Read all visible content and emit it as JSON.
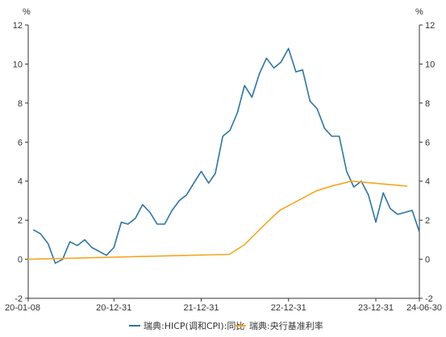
{
  "chart_data": {
    "type": "line",
    "y_unit_left": "%",
    "y_unit_right": "%",
    "ylim": [
      -2,
      12
    ],
    "y_ticks": [
      -2,
      0,
      2,
      4,
      6,
      8,
      10,
      12
    ],
    "x_range": [
      "2020-01-08",
      "2024-06-30"
    ],
    "x_tick_labels": [
      {
        "label": "20-01-08",
        "date": "2020-01-08"
      },
      {
        "label": "20-12-31",
        "date": "2020-12-31"
      },
      {
        "label": "21-12-31",
        "date": "2021-12-31"
      },
      {
        "label": "22-12-31",
        "date": "2022-12-31"
      },
      {
        "label": "23-12-31",
        "date": "2023-12-31"
      },
      {
        "label": "24-06-30",
        "date": "2024-06-30"
      }
    ],
    "grid": false,
    "legend_position": "bottom",
    "series": [
      {
        "name": "瑞典:HICP(调和CPI):同比",
        "color": "#2e75a0",
        "points": [
          [
            "2020-01-31",
            1.5
          ],
          [
            "2020-02-29",
            1.3
          ],
          [
            "2020-03-31",
            0.8
          ],
          [
            "2020-04-30",
            -0.2
          ],
          [
            "2020-05-31",
            0.0
          ],
          [
            "2020-06-30",
            0.9
          ],
          [
            "2020-07-31",
            0.7
          ],
          [
            "2020-08-31",
            1.0
          ],
          [
            "2020-09-30",
            0.6
          ],
          [
            "2020-10-31",
            0.4
          ],
          [
            "2020-11-30",
            0.2
          ],
          [
            "2020-12-31",
            0.6
          ],
          [
            "2021-01-31",
            1.9
          ],
          [
            "2021-02-28",
            1.8
          ],
          [
            "2021-03-31",
            2.1
          ],
          [
            "2021-04-30",
            2.8
          ],
          [
            "2021-05-31",
            2.4
          ],
          [
            "2021-06-30",
            1.8
          ],
          [
            "2021-07-31",
            1.8
          ],
          [
            "2021-08-31",
            2.5
          ],
          [
            "2021-09-30",
            3.0
          ],
          [
            "2021-10-31",
            3.3
          ],
          [
            "2021-11-30",
            3.9
          ],
          [
            "2021-12-31",
            4.5
          ],
          [
            "2022-01-31",
            3.9
          ],
          [
            "2022-02-28",
            4.4
          ],
          [
            "2022-03-31",
            6.3
          ],
          [
            "2022-04-30",
            6.6
          ],
          [
            "2022-05-31",
            7.5
          ],
          [
            "2022-06-30",
            8.9
          ],
          [
            "2022-07-31",
            8.3
          ],
          [
            "2022-08-31",
            9.5
          ],
          [
            "2022-09-30",
            10.3
          ],
          [
            "2022-10-31",
            9.8
          ],
          [
            "2022-11-30",
            10.1
          ],
          [
            "2022-12-31",
            10.8
          ],
          [
            "2023-01-31",
            9.6
          ],
          [
            "2023-02-28",
            9.7
          ],
          [
            "2023-03-31",
            8.1
          ],
          [
            "2023-04-30",
            7.7
          ],
          [
            "2023-05-31",
            6.7
          ],
          [
            "2023-06-30",
            6.3
          ],
          [
            "2023-07-31",
            6.3
          ],
          [
            "2023-08-31",
            4.5
          ],
          [
            "2023-09-30",
            3.7
          ],
          [
            "2023-10-31",
            4.0
          ],
          [
            "2023-11-30",
            3.3
          ],
          [
            "2023-12-31",
            1.9
          ],
          [
            "2024-01-31",
            3.4
          ],
          [
            "2024-02-29",
            2.6
          ],
          [
            "2024-03-31",
            2.3
          ],
          [
            "2024-04-30",
            2.4
          ],
          [
            "2024-05-31",
            2.5
          ],
          [
            "2024-06-30",
            1.4
          ]
        ]
      },
      {
        "name": "瑞典:央行基准利率",
        "color": "#f5a623",
        "points": [
          [
            "2020-01-08",
            0.0
          ],
          [
            "2022-04-28",
            0.25
          ],
          [
            "2022-06-30",
            0.75
          ],
          [
            "2022-09-20",
            1.75
          ],
          [
            "2022-11-24",
            2.5
          ],
          [
            "2023-02-08",
            3.0
          ],
          [
            "2023-04-26",
            3.5
          ],
          [
            "2023-06-29",
            3.75
          ],
          [
            "2023-09-20",
            4.0
          ],
          [
            "2024-05-08",
            3.75
          ]
        ]
      }
    ]
  }
}
